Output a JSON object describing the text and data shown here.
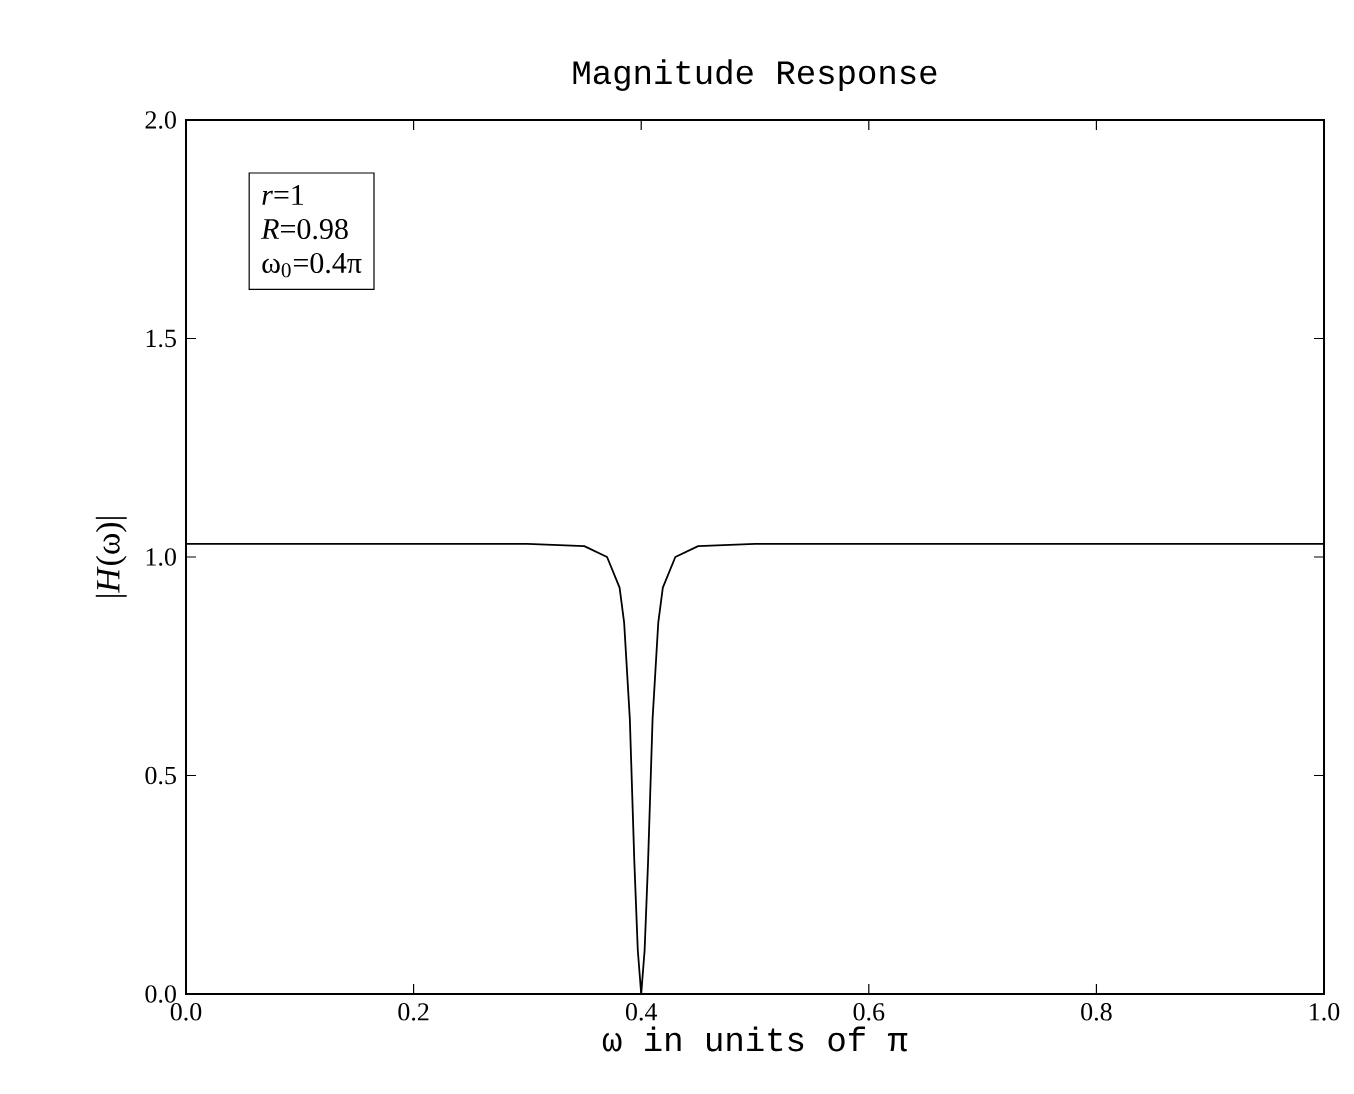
{
  "chart_data": {
    "type": "line",
    "title": "Magnitude Response",
    "xlabel": "ω in units of π",
    "ylabel": "|*H*(ω)|",
    "x": [
      0.0,
      0.1,
      0.2,
      0.3,
      0.35,
      0.37,
      0.381,
      0.385,
      0.39,
      0.394,
      0.397,
      0.4,
      0.403,
      0.406,
      0.41,
      0.415,
      0.419,
      0.43,
      0.45,
      0.5,
      0.6,
      0.7,
      0.8,
      0.9,
      1.0
    ],
    "series": [
      {
        "color": "#000000",
        "values": [
          1.03,
          1.03,
          1.03,
          1.03,
          1.025,
          1.0,
          0.93,
          0.85,
          0.63,
          0.3,
          0.1,
          0.0,
          0.1,
          0.3,
          0.63,
          0.85,
          0.93,
          1.0,
          1.025,
          1.03,
          1.03,
          1.03,
          1.03,
          1.03,
          1.03
        ]
      }
    ],
    "xlim": [
      0.0,
      1.0
    ],
    "ylim": [
      0.0,
      2.0
    ],
    "xticks": [
      {
        "value": 0.0,
        "label": "0.0"
      },
      {
        "value": 0.2,
        "label": "0.2"
      },
      {
        "value": 0.4,
        "label": "0.4"
      },
      {
        "value": 0.6,
        "label": "0.6"
      },
      {
        "value": 0.8,
        "label": "0.8"
      },
      {
        "value": 1.0,
        "label": "1.0"
      }
    ],
    "yticks": [
      {
        "value": 0.0,
        "label": "0.0"
      },
      {
        "value": 0.5,
        "label": "0.5"
      },
      {
        "value": 1.0,
        "label": "1.0"
      },
      {
        "value": 1.5,
        "label": "1.5"
      },
      {
        "value": 2.0,
        "label": "2.0"
      }
    ],
    "annotations": [
      "*r*=1",
      "*R*=0.98",
      "ω$_{0}$=0.4π"
    ]
  }
}
